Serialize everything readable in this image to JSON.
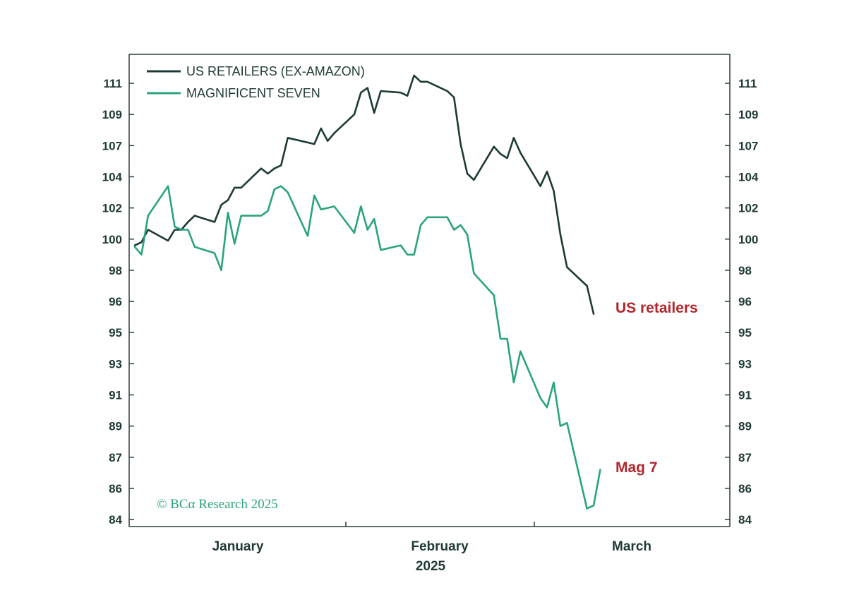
{
  "colors": {
    "us_retailers": "#1c3a36",
    "magnificent_seven": "#2aa37e",
    "end_label": "#b3262c",
    "axis": "#2b3f3c",
    "copyright": "#2aa37e"
  },
  "chart_data": {
    "type": "line",
    "title": "",
    "xlabel": "",
    "ylabel": "",
    "ylim": [
      83.5,
      112.5
    ],
    "y_ticks": [
      84,
      86,
      87,
      89,
      91,
      93,
      95,
      96,
      98,
      100,
      102,
      104,
      107,
      109,
      111
    ],
    "y_tick_labels": [
      "84",
      "86",
      "87",
      "89",
      "91",
      "93",
      "95",
      "96",
      "98",
      "100",
      "102",
      "104",
      "107",
      "109",
      "111"
    ],
    "x_month_labels": [
      "January",
      "February",
      "March"
    ],
    "x_year_label": "2025",
    "legend_position": "top-left",
    "series": [
      {
        "name": "US RETAILERS (EX-AMAZON)",
        "end_label": "US retailers",
        "color_key": "us_retailers",
        "points": [
          [
            "2025-01-01",
            99.6
          ],
          [
            "2025-01-02",
            99.8
          ],
          [
            "2025-01-03",
            100.6
          ],
          [
            "2025-01-06",
            99.9
          ],
          [
            "2025-01-07",
            100.6
          ],
          [
            "2025-01-08",
            100.6
          ],
          [
            "2025-01-09",
            101.1
          ],
          [
            "2025-01-10",
            101.5
          ],
          [
            "2025-01-13",
            101.1
          ],
          [
            "2025-01-14",
            102.2
          ],
          [
            "2025-01-15",
            102.5
          ],
          [
            "2025-01-16",
            103.3
          ],
          [
            "2025-01-17",
            103.3
          ],
          [
            "2025-01-20",
            104.8
          ],
          [
            "2025-01-21",
            104.3
          ],
          [
            "2025-01-22",
            104.8
          ],
          [
            "2025-01-23",
            105.1
          ],
          [
            "2025-01-24",
            107.5
          ],
          [
            "2025-01-27",
            107.2
          ],
          [
            "2025-01-28",
            107.1
          ],
          [
            "2025-01-29",
            108.1
          ],
          [
            "2025-01-30",
            107.3
          ],
          [
            "2025-01-31",
            107.8
          ],
          [
            "2025-02-03",
            109.0
          ],
          [
            "2025-02-04",
            110.4
          ],
          [
            "2025-02-05",
            110.7
          ],
          [
            "2025-02-06",
            109.1
          ],
          [
            "2025-02-07",
            110.5
          ],
          [
            "2025-02-10",
            110.4
          ],
          [
            "2025-02-11",
            110.2
          ],
          [
            "2025-02-12",
            111.5
          ],
          [
            "2025-02-13",
            111.1
          ],
          [
            "2025-02-14",
            111.1
          ],
          [
            "2025-02-17",
            110.5
          ],
          [
            "2025-02-18",
            110.1
          ],
          [
            "2025-02-19",
            107.1
          ],
          [
            "2025-02-20",
            104.3
          ],
          [
            "2025-02-21",
            103.8
          ],
          [
            "2025-02-24",
            106.9
          ],
          [
            "2025-02-25",
            106.2
          ],
          [
            "2025-02-26",
            105.8
          ],
          [
            "2025-02-27",
            107.5
          ],
          [
            "2025-02-28",
            106.3
          ],
          [
            "2025-03-03",
            103.4
          ],
          [
            "2025-03-04",
            104.5
          ],
          [
            "2025-03-05",
            103.1
          ],
          [
            "2025-03-06",
            100.3
          ],
          [
            "2025-03-07",
            98.2
          ],
          [
            "2025-03-10",
            97.0
          ],
          [
            "2025-03-11",
            95.6
          ]
        ]
      },
      {
        "name": "MAGNIFICENT SEVEN",
        "end_label": "Mag 7",
        "color_key": "magnificent_seven",
        "points": [
          [
            "2025-01-01",
            99.5
          ],
          [
            "2025-01-02",
            99.0
          ],
          [
            "2025-01-03",
            101.5
          ],
          [
            "2025-01-06",
            103.4
          ],
          [
            "2025-01-07",
            100.8
          ],
          [
            "2025-01-08",
            100.6
          ],
          [
            "2025-01-09",
            100.6
          ],
          [
            "2025-01-10",
            99.5
          ],
          [
            "2025-01-13",
            99.1
          ],
          [
            "2025-01-14",
            98.0
          ],
          [
            "2025-01-15",
            101.7
          ],
          [
            "2025-01-16",
            99.7
          ],
          [
            "2025-01-17",
            101.5
          ],
          [
            "2025-01-20",
            101.5
          ],
          [
            "2025-01-21",
            101.8
          ],
          [
            "2025-01-22",
            103.2
          ],
          [
            "2025-01-23",
            103.4
          ],
          [
            "2025-01-24",
            103.0
          ],
          [
            "2025-01-27",
            100.2
          ],
          [
            "2025-01-28",
            102.8
          ],
          [
            "2025-01-29",
            101.9
          ],
          [
            "2025-01-30",
            102.0
          ],
          [
            "2025-01-31",
            102.1
          ],
          [
            "2025-02-03",
            100.4
          ],
          [
            "2025-02-04",
            102.1
          ],
          [
            "2025-02-05",
            100.6
          ],
          [
            "2025-02-06",
            101.3
          ],
          [
            "2025-02-07",
            99.3
          ],
          [
            "2025-02-10",
            99.6
          ],
          [
            "2025-02-11",
            99.0
          ],
          [
            "2025-02-12",
            99.0
          ],
          [
            "2025-02-13",
            100.9
          ],
          [
            "2025-02-14",
            101.4
          ],
          [
            "2025-02-17",
            101.4
          ],
          [
            "2025-02-18",
            100.6
          ],
          [
            "2025-02-19",
            100.9
          ],
          [
            "2025-02-20",
            100.3
          ],
          [
            "2025-02-21",
            97.8
          ],
          [
            "2025-02-24",
            96.4
          ],
          [
            "2025-02-25",
            94.6
          ],
          [
            "2025-02-26",
            94.6
          ],
          [
            "2025-02-27",
            91.8
          ],
          [
            "2025-02-28",
            93.8
          ],
          [
            "2025-03-03",
            90.8
          ],
          [
            "2025-03-04",
            90.2
          ],
          [
            "2025-03-05",
            91.8
          ],
          [
            "2025-03-06",
            89.0
          ],
          [
            "2025-03-07",
            89.2
          ],
          [
            "2025-03-10",
            84.7
          ],
          [
            "2025-03-11",
            84.9
          ],
          [
            "2025-03-12",
            86.6
          ]
        ]
      }
    ],
    "copyright": "© BCα Research 2025"
  }
}
